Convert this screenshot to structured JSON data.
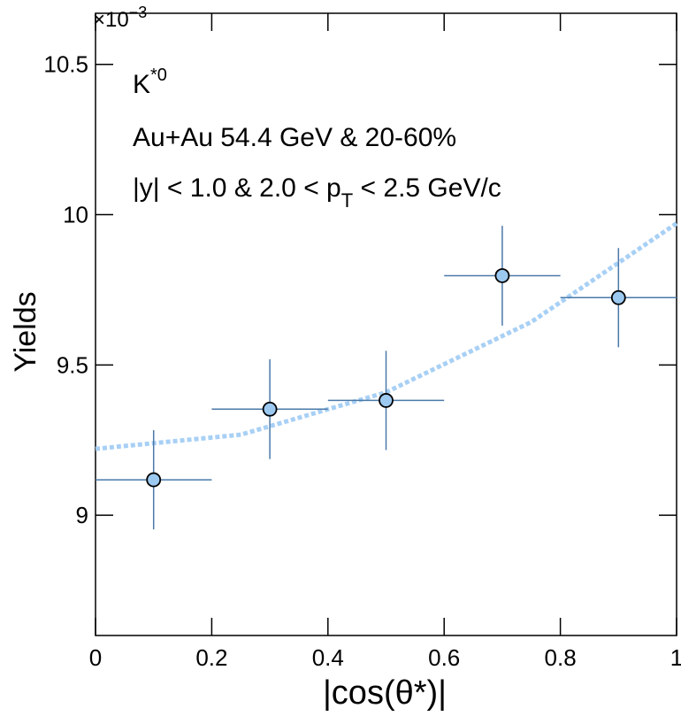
{
  "chart_data": {
    "type": "scatter",
    "x_label": "|cos(θ*)|",
    "y_label": "Yields",
    "exponent": {
      "base": "×10",
      "power": "−3"
    },
    "annotations": {
      "particle": {
        "base": "K",
        "sup": "*0"
      },
      "system": "Au+Au 54.4 GeV & 20-60%",
      "cuts": {
        "pre": "|y| < 1.0 & 2.0 < p",
        "sub": "T",
        "post": " < 2.5 GeV/c"
      }
    },
    "x": [
      0.1,
      0.3,
      0.5,
      0.7,
      0.9
    ],
    "xerr": [
      0.1,
      0.1,
      0.1,
      0.1,
      0.1
    ],
    "values": [
      9.118,
      9.353,
      9.382,
      9.797,
      9.724
    ],
    "errors": [
      0.165,
      0.166,
      0.165,
      0.166,
      0.165
    ],
    "color": "#9cc9f0",
    "error_color": "#4a79a8",
    "fit": {
      "x": [
        0,
        0.25,
        0.5,
        0.75,
        1
      ],
      "values": [
        9.221,
        9.268,
        9.409,
        9.643,
        9.971
      ],
      "color": "#a8d0f5"
    },
    "xlim": [
      0,
      1
    ],
    "ylim": [
      8.6,
      10.67
    ],
    "xticks": [
      0,
      0.2,
      0.4,
      0.6,
      0.8,
      1
    ],
    "yticks": [
      9,
      9.5,
      10,
      10.5
    ]
  }
}
